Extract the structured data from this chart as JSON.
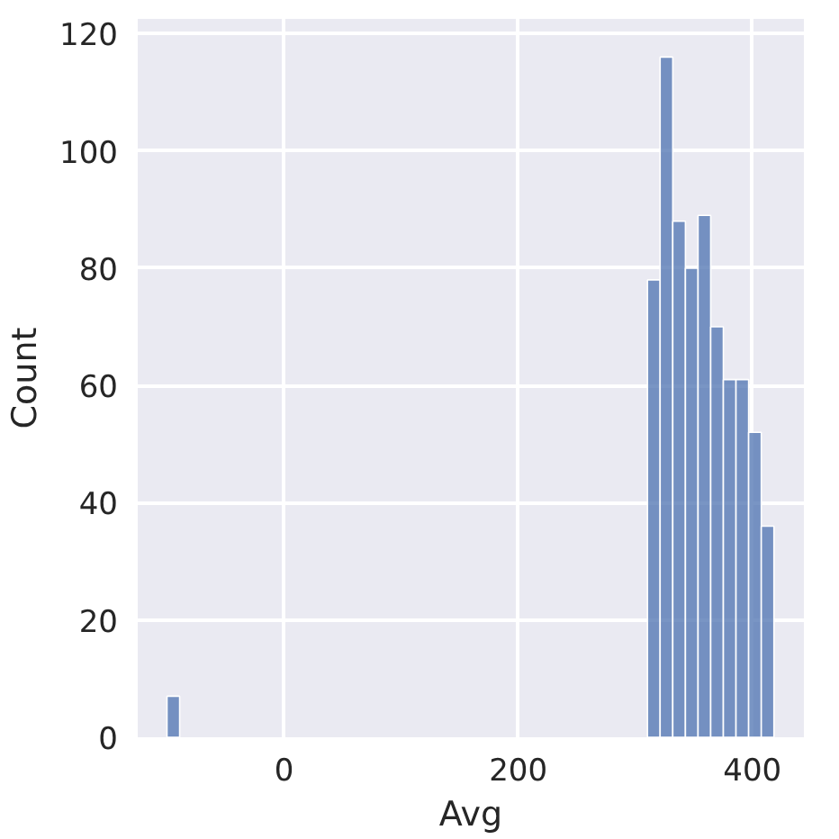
{
  "chart_data": {
    "type": "histogram",
    "xlabel": "Avg",
    "ylabel": "Count",
    "color": "#4c72b0",
    "bins": [
      -100,
      -89.2,
      -78.4,
      -67.6,
      -56.8,
      -46,
      -35.2,
      -24.4,
      -13.6,
      -2.8,
      8,
      18.8,
      29.6,
      40.4,
      51.2,
      62,
      72.8,
      83.6,
      94.4,
      105.2,
      116,
      126.8,
      137.6,
      148.4,
      159.2,
      170,
      180.8,
      191.6,
      202.4,
      213.2,
      224,
      234.8,
      245.6,
      256.4,
      267.2,
      278,
      288.8,
      299.6,
      310.4,
      321.2,
      332,
      342.8,
      353.6,
      364.4,
      375.2,
      386,
      396.8,
      407.6,
      418.4
    ],
    "values": [
      7,
      0,
      0,
      0,
      0,
      0,
      0,
      0,
      0,
      0,
      0,
      0,
      0,
      0,
      0,
      0,
      0,
      0,
      0,
      0,
      0,
      0,
      0,
      0,
      0,
      0,
      0,
      0,
      0,
      0,
      0,
      0,
      0,
      0,
      0,
      0,
      0,
      0,
      78,
      116,
      88,
      80,
      89,
      70,
      61,
      61,
      52,
      36
    ],
    "xlim": [
      -125,
      444
    ],
    "ylim": [
      0,
      122.5
    ],
    "xticks": [
      0,
      200,
      400
    ],
    "yticks": [
      0,
      20,
      40,
      60,
      80,
      100,
      120
    ],
    "grid": true
  }
}
